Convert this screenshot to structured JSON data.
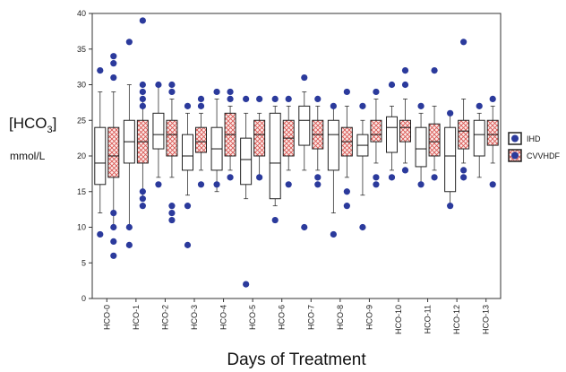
{
  "chart_data": {
    "type": "box",
    "xlabel": "Days of Treatment",
    "ylabel_parts": [
      "[HCO",
      "3",
      "]"
    ],
    "ylabel_unit": "mmol/L",
    "ylim": [
      0,
      40
    ],
    "yticks": [
      0,
      5,
      10,
      15,
      20,
      25,
      30,
      35,
      40
    ],
    "grid": false,
    "legend_position": "right",
    "categories": [
      "HCO-0",
      "HCO-1",
      "HCO-2",
      "HCO-3",
      "HCO-4",
      "HCO-5",
      "HCO-6",
      "HCO-7",
      "HCO-8",
      "HCO-9",
      "HCO-10",
      "HCO-11",
      "HCO-12",
      "HCO-13"
    ],
    "colors": {
      "outlier": "#2b3a9c",
      "hatch": "#d9534f",
      "box_stroke": "#222222"
    },
    "series": [
      {
        "name": "IHD",
        "pattern": "none",
        "boxes": [
          {
            "whisker_low": 12,
            "q1": 16,
            "median": 19,
            "q3": 24,
            "whisker_high": 29,
            "outliers": [
              32,
              9
            ]
          },
          {
            "whisker_low": 10,
            "q1": 19,
            "median": 22,
            "q3": 25,
            "whisker_high": 30,
            "outliers": [
              36,
              7.5,
              10
            ]
          },
          {
            "whisker_low": 17,
            "q1": 21,
            "median": 23,
            "q3": 26,
            "whisker_high": 30,
            "outliers": [
              30,
              16
            ]
          },
          {
            "whisker_low": 14.5,
            "q1": 18,
            "median": 20,
            "q3": 23,
            "whisker_high": 26,
            "outliers": [
              27,
              7.5,
              13
            ]
          },
          {
            "whisker_low": 15,
            "q1": 18,
            "median": 21,
            "q3": 24,
            "whisker_high": 28,
            "outliers": [
              29,
              16
            ]
          },
          {
            "whisker_low": 14,
            "q1": 16,
            "median": 19.5,
            "q3": 22.5,
            "whisker_high": 26,
            "outliers": [
              28,
              2
            ]
          },
          {
            "whisker_low": 13,
            "q1": 14,
            "median": 19,
            "q3": 26,
            "whisker_high": 27,
            "outliers": [
              28,
              11
            ]
          },
          {
            "whisker_low": 18,
            "q1": 21.5,
            "median": 25,
            "q3": 27,
            "whisker_high": 29,
            "outliers": [
              31,
              10
            ]
          },
          {
            "whisker_low": 12,
            "q1": 18,
            "median": 23,
            "q3": 25,
            "whisker_high": 27,
            "outliers": [
              27,
              9
            ]
          },
          {
            "whisker_low": 14.5,
            "q1": 20,
            "median": 21.5,
            "q3": 23,
            "whisker_high": 25,
            "outliers": [
              27,
              10
            ]
          },
          {
            "whisker_low": 18,
            "q1": 20.5,
            "median": 24,
            "q3": 25.5,
            "whisker_high": 27,
            "outliers": [
              30,
              17
            ]
          },
          {
            "whisker_low": 16,
            "q1": 18.5,
            "median": 21,
            "q3": 24,
            "whisker_high": 26,
            "outliers": [
              27,
              16
            ]
          },
          {
            "whisker_low": 13,
            "q1": 15,
            "median": 20,
            "q3": 24,
            "whisker_high": 26,
            "outliers": [
              26,
              13
            ]
          },
          {
            "whisker_low": 17,
            "q1": 20,
            "median": 23,
            "q3": 25,
            "whisker_high": 26,
            "outliers": [
              27
            ]
          }
        ]
      },
      {
        "name": "CVVHDF",
        "pattern": "crosshatch",
        "boxes": [
          {
            "whisker_low": 10,
            "q1": 17,
            "median": 20,
            "q3": 24,
            "whisker_high": 29,
            "outliers": [
              34,
              33,
              31,
              12,
              10,
              8,
              6
            ]
          },
          {
            "whisker_low": 14,
            "q1": 19,
            "median": 22,
            "q3": 25,
            "whisker_high": 28,
            "outliers": [
              39,
              30,
              29,
              28,
              27,
              15,
              14,
              13
            ]
          },
          {
            "whisker_low": 17,
            "q1": 20,
            "median": 23,
            "q3": 25,
            "whisker_high": 28,
            "outliers": [
              30,
              29,
              13,
              12,
              11
            ]
          },
          {
            "whisker_low": 18,
            "q1": 20.5,
            "median": 22,
            "q3": 24,
            "whisker_high": 26,
            "outliers": [
              28,
              27,
              16
            ]
          },
          {
            "whisker_low": 18,
            "q1": 20,
            "median": 23,
            "q3": 26,
            "whisker_high": 27,
            "outliers": [
              29,
              28,
              17
            ]
          },
          {
            "whisker_low": 17,
            "q1": 20,
            "median": 23,
            "q3": 25,
            "whisker_high": 26,
            "outliers": [
              28,
              17
            ]
          },
          {
            "whisker_low": 18,
            "q1": 20,
            "median": 22.5,
            "q3": 25,
            "whisker_high": 27,
            "outliers": [
              28,
              16
            ]
          },
          {
            "whisker_low": 18,
            "q1": 21,
            "median": 23,
            "q3": 25,
            "whisker_high": 27,
            "outliers": [
              28,
              17,
              16
            ]
          },
          {
            "whisker_low": 17,
            "q1": 20,
            "median": 22,
            "q3": 24,
            "whisker_high": 27,
            "outliers": [
              29,
              15,
              13
            ]
          },
          {
            "whisker_low": 19,
            "q1": 22,
            "median": 23,
            "q3": 25,
            "whisker_high": 28,
            "outliers": [
              29,
              17,
              16
            ]
          },
          {
            "whisker_low": 19,
            "q1": 22,
            "median": 24,
            "q3": 25,
            "whisker_high": 28,
            "outliers": [
              32,
              30,
              18
            ]
          },
          {
            "whisker_low": 18,
            "q1": 20,
            "median": 22,
            "q3": 24.5,
            "whisker_high": 27,
            "outliers": [
              32,
              17
            ]
          },
          {
            "whisker_low": 19,
            "q1": 21,
            "median": 23.5,
            "q3": 25,
            "whisker_high": 28,
            "outliers": [
              36,
              18,
              17
            ]
          },
          {
            "whisker_low": 19,
            "q1": 21.5,
            "median": 23,
            "q3": 25,
            "whisker_high": 27,
            "outliers": [
              28,
              16
            ]
          }
        ]
      }
    ]
  }
}
